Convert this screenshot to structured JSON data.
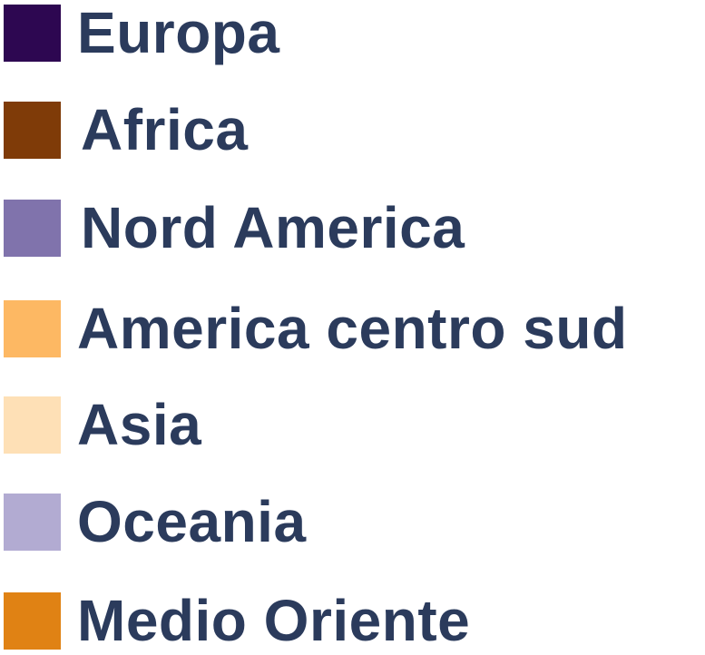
{
  "chart_data": {
    "type": "legend",
    "legend": [
      {
        "label": "Europa",
        "color": "#2d0751"
      },
      {
        "label": "Africa",
        "color": "#7f3b08"
      },
      {
        "label": "Nord America",
        "color": "#8073ac"
      },
      {
        "label": "America centro sud",
        "color": "#fdb863"
      },
      {
        "label": "Asia",
        "color": "#fee0b6"
      },
      {
        "label": "Oceania",
        "color": "#b2abd2"
      },
      {
        "label": "Medio Oriente",
        "color": "#e08214"
      }
    ]
  }
}
